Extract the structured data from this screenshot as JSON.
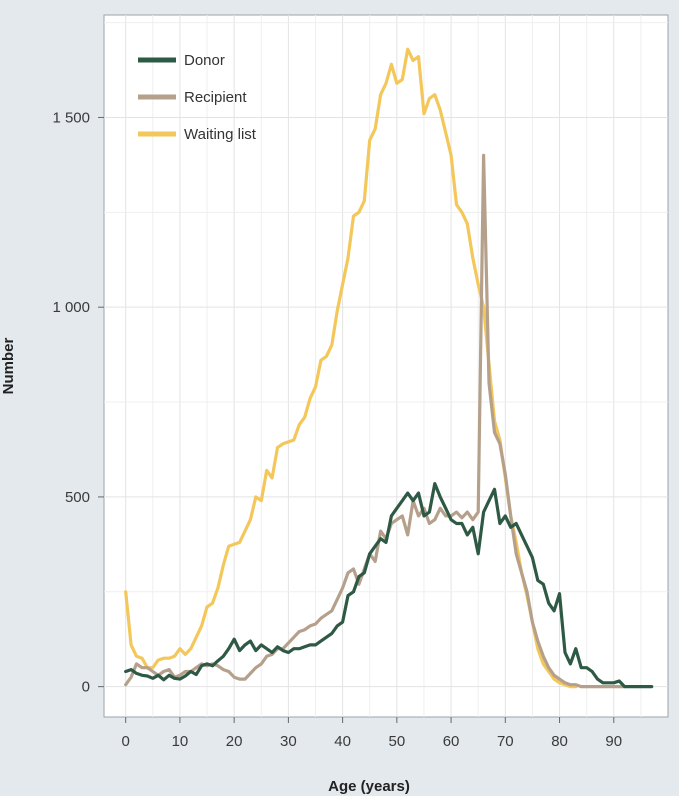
{
  "chart_data": {
    "type": "line",
    "xlabel": "Age (years)",
    "ylabel": "Number",
    "xlim": [
      -4,
      100
    ],
    "ylim": [
      -80,
      1770
    ],
    "x_ticks": [
      0,
      10,
      20,
      30,
      40,
      50,
      60,
      70,
      80,
      90
    ],
    "x_tick_labels": [
      "0",
      "10",
      "20",
      "30",
      "40",
      "50",
      "60",
      "70",
      "80",
      "90"
    ],
    "y_ticks": [
      0,
      500,
      1000,
      1500
    ],
    "y_tick_labels": [
      "0",
      "500",
      "1 000",
      "1 500"
    ],
    "grid": true,
    "legend_position": "top-left",
    "series": [
      {
        "name": "Donor",
        "color": "#2e5a45",
        "points": [
          [
            0,
            40
          ],
          [
            1,
            45
          ],
          [
            2,
            35
          ],
          [
            3,
            30
          ],
          [
            4,
            28
          ],
          [
            5,
            22
          ],
          [
            6,
            30
          ],
          [
            7,
            18
          ],
          [
            8,
            30
          ],
          [
            9,
            22
          ],
          [
            10,
            20
          ],
          [
            11,
            28
          ],
          [
            12,
            40
          ],
          [
            13,
            32
          ],
          [
            14,
            55
          ],
          [
            15,
            60
          ],
          [
            16,
            55
          ],
          [
            17,
            68
          ],
          [
            18,
            80
          ],
          [
            19,
            100
          ],
          [
            20,
            125
          ],
          [
            21,
            95
          ],
          [
            22,
            110
          ],
          [
            23,
            120
          ],
          [
            24,
            95
          ],
          [
            25,
            110
          ],
          [
            26,
            100
          ],
          [
            27,
            90
          ],
          [
            28,
            105
          ],
          [
            29,
            95
          ],
          [
            30,
            90
          ],
          [
            31,
            100
          ],
          [
            32,
            100
          ],
          [
            33,
            105
          ],
          [
            34,
            110
          ],
          [
            35,
            110
          ],
          [
            36,
            120
          ],
          [
            37,
            130
          ],
          [
            38,
            140
          ],
          [
            39,
            160
          ],
          [
            40,
            170
          ],
          [
            41,
            240
          ],
          [
            42,
            250
          ],
          [
            43,
            290
          ],
          [
            44,
            300
          ],
          [
            45,
            350
          ],
          [
            46,
            370
          ],
          [
            47,
            390
          ],
          [
            48,
            380
          ],
          [
            49,
            450
          ],
          [
            50,
            470
          ],
          [
            51,
            490
          ],
          [
            52,
            510
          ],
          [
            53,
            490
          ],
          [
            54,
            510
          ],
          [
            55,
            450
          ],
          [
            56,
            460
          ],
          [
            57,
            535
          ],
          [
            58,
            500
          ],
          [
            59,
            470
          ],
          [
            60,
            440
          ],
          [
            61,
            430
          ],
          [
            62,
            430
          ],
          [
            63,
            400
          ],
          [
            64,
            420
          ],
          [
            65,
            350
          ],
          [
            66,
            460
          ],
          [
            67,
            490
          ],
          [
            68,
            520
          ],
          [
            69,
            430
          ],
          [
            70,
            450
          ],
          [
            71,
            420
          ],
          [
            72,
            430
          ],
          [
            73,
            400
          ],
          [
            74,
            370
          ],
          [
            75,
            340
          ],
          [
            76,
            280
          ],
          [
            77,
            270
          ],
          [
            78,
            220
          ],
          [
            79,
            200
          ],
          [
            80,
            245
          ],
          [
            81,
            90
          ],
          [
            82,
            60
          ],
          [
            83,
            100
          ],
          [
            84,
            50
          ],
          [
            85,
            50
          ],
          [
            86,
            40
          ],
          [
            87,
            20
          ],
          [
            88,
            10
          ],
          [
            89,
            10
          ],
          [
            90,
            10
          ],
          [
            91,
            15
          ],
          [
            92,
            0
          ],
          [
            93,
            0
          ],
          [
            94,
            0
          ],
          [
            95,
            0
          ],
          [
            96,
            0
          ],
          [
            97,
            0
          ]
        ]
      },
      {
        "name": "Recipient",
        "color": "#b5a08c",
        "points": [
          [
            0,
            5
          ],
          [
            1,
            25
          ],
          [
            2,
            60
          ],
          [
            3,
            50
          ],
          [
            4,
            50
          ],
          [
            5,
            40
          ],
          [
            6,
            30
          ],
          [
            7,
            40
          ],
          [
            8,
            45
          ],
          [
            9,
            25
          ],
          [
            10,
            30
          ],
          [
            11,
            40
          ],
          [
            12,
            40
          ],
          [
            13,
            50
          ],
          [
            14,
            60
          ],
          [
            15,
            55
          ],
          [
            16,
            60
          ],
          [
            17,
            55
          ],
          [
            18,
            45
          ],
          [
            19,
            40
          ],
          [
            20,
            25
          ],
          [
            21,
            20
          ],
          [
            22,
            20
          ],
          [
            23,
            35
          ],
          [
            24,
            50
          ],
          [
            25,
            60
          ],
          [
            26,
            80
          ],
          [
            27,
            85
          ],
          [
            28,
            100
          ],
          [
            29,
            100
          ],
          [
            30,
            115
          ],
          [
            31,
            130
          ],
          [
            32,
            145
          ],
          [
            33,
            150
          ],
          [
            34,
            160
          ],
          [
            35,
            165
          ],
          [
            36,
            180
          ],
          [
            37,
            190
          ],
          [
            38,
            200
          ],
          [
            39,
            230
          ],
          [
            40,
            260
          ],
          [
            41,
            300
          ],
          [
            42,
            310
          ],
          [
            43,
            270
          ],
          [
            44,
            310
          ],
          [
            45,
            350
          ],
          [
            46,
            330
          ],
          [
            47,
            410
          ],
          [
            48,
            390
          ],
          [
            49,
            430
          ],
          [
            50,
            440
          ],
          [
            51,
            450
          ],
          [
            52,
            400
          ],
          [
            53,
            490
          ],
          [
            54,
            450
          ],
          [
            55,
            470
          ],
          [
            56,
            430
          ],
          [
            57,
            440
          ],
          [
            58,
            470
          ],
          [
            59,
            450
          ],
          [
            60,
            450
          ],
          [
            61,
            460
          ],
          [
            62,
            445
          ],
          [
            63,
            460
          ],
          [
            64,
            440
          ],
          [
            65,
            460
          ],
          [
            66,
            1400
          ],
          [
            67,
            800
          ],
          [
            68,
            670
          ],
          [
            69,
            640
          ],
          [
            70,
            560
          ],
          [
            71,
            450
          ],
          [
            72,
            350
          ],
          [
            73,
            300
          ],
          [
            74,
            250
          ],
          [
            75,
            170
          ],
          [
            76,
            120
          ],
          [
            77,
            80
          ],
          [
            78,
            50
          ],
          [
            79,
            30
          ],
          [
            80,
            20
          ],
          [
            81,
            10
          ],
          [
            82,
            5
          ],
          [
            83,
            5
          ],
          [
            84,
            0
          ],
          [
            85,
            0
          ],
          [
            86,
            0
          ],
          [
            87,
            0
          ],
          [
            88,
            0
          ],
          [
            89,
            0
          ],
          [
            90,
            0
          ],
          [
            91,
            0
          ],
          [
            92,
            0
          ]
        ]
      },
      {
        "name": "Waiting list",
        "color": "#f3c75a",
        "points": [
          [
            0,
            250
          ],
          [
            1,
            110
          ],
          [
            2,
            80
          ],
          [
            3,
            75
          ],
          [
            4,
            50
          ],
          [
            5,
            50
          ],
          [
            6,
            70
          ],
          [
            7,
            75
          ],
          [
            8,
            75
          ],
          [
            9,
            80
          ],
          [
            10,
            100
          ],
          [
            11,
            85
          ],
          [
            12,
            100
          ],
          [
            13,
            130
          ],
          [
            14,
            160
          ],
          [
            15,
            210
          ],
          [
            16,
            220
          ],
          [
            17,
            260
          ],
          [
            18,
            320
          ],
          [
            19,
            370
          ],
          [
            20,
            375
          ],
          [
            21,
            380
          ],
          [
            22,
            410
          ],
          [
            23,
            440
          ],
          [
            24,
            500
          ],
          [
            25,
            490
          ],
          [
            26,
            570
          ],
          [
            27,
            550
          ],
          [
            28,
            630
          ],
          [
            29,
            640
          ],
          [
            30,
            645
          ],
          [
            31,
            650
          ],
          [
            32,
            690
          ],
          [
            33,
            710
          ],
          [
            34,
            760
          ],
          [
            35,
            790
          ],
          [
            36,
            860
          ],
          [
            37,
            870
          ],
          [
            38,
            900
          ],
          [
            39,
            990
          ],
          [
            40,
            1060
          ],
          [
            41,
            1130
          ],
          [
            42,
            1240
          ],
          [
            43,
            1250
          ],
          [
            44,
            1280
          ],
          [
            45,
            1440
          ],
          [
            46,
            1470
          ],
          [
            47,
            1560
          ],
          [
            48,
            1590
          ],
          [
            49,
            1640
          ],
          [
            50,
            1590
          ],
          [
            51,
            1600
          ],
          [
            52,
            1680
          ],
          [
            53,
            1650
          ],
          [
            54,
            1660
          ],
          [
            55,
            1510
          ],
          [
            56,
            1550
          ],
          [
            57,
            1560
          ],
          [
            58,
            1520
          ],
          [
            59,
            1460
          ],
          [
            60,
            1400
          ],
          [
            61,
            1270
          ],
          [
            62,
            1250
          ],
          [
            63,
            1220
          ],
          [
            64,
            1130
          ],
          [
            65,
            1060
          ],
          [
            66,
            1000
          ],
          [
            67,
            850
          ],
          [
            68,
            700
          ],
          [
            69,
            650
          ],
          [
            70,
            550
          ],
          [
            71,
            450
          ],
          [
            72,
            380
          ],
          [
            73,
            300
          ],
          [
            74,
            240
          ],
          [
            75,
            170
          ],
          [
            76,
            100
          ],
          [
            77,
            60
          ],
          [
            78,
            40
          ],
          [
            79,
            20
          ],
          [
            80,
            10
          ],
          [
            81,
            5
          ],
          [
            82,
            0
          ],
          [
            83,
            0
          ]
        ]
      }
    ]
  }
}
